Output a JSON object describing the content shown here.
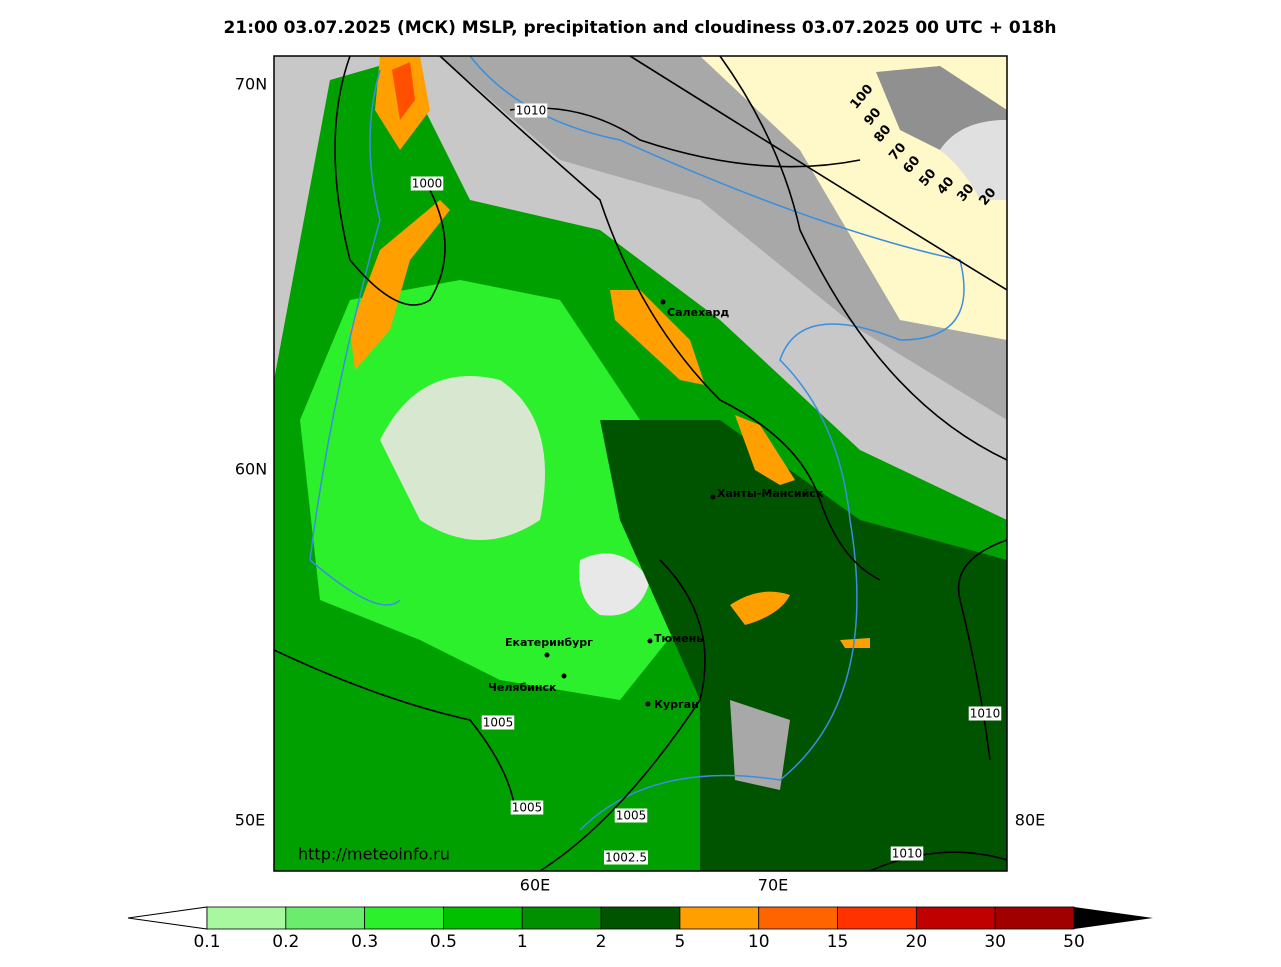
{
  "title": "21:00 03.07.2025 (МСК) MSLP, precipitation and cloudiness 03.07.2025 00 UTC + 018h",
  "axis_labels": [
    "70N",
    "60N",
    "50E",
    "80E",
    "60E",
    "70E"
  ],
  "cities": [
    "Салехард",
    "Ханты-Мансийск",
    "Екатеринбург",
    "Тюмень",
    "Челябинск",
    "Курган"
  ],
  "isobar_labels": [
    1010,
    1000,
    1005,
    1005,
    1005,
    1002.5,
    1010,
    1010
  ],
  "cloud_scale": [
    100,
    90,
    80,
    70,
    60,
    50,
    40,
    30,
    20
  ],
  "colorbar": {
    "ticks": [
      0.1,
      0.2,
      0.3,
      0.5,
      1,
      2,
      5,
      10,
      15,
      20,
      30,
      50
    ],
    "colors": [
      "#a8f8a0",
      "#6cec6c",
      "#2cf02c",
      "#00c000",
      "#009000",
      "#005400",
      "#ffa000",
      "#ff6400",
      "#ff3200",
      "#c00000",
      "#a00000"
    ]
  },
  "url": "http://meteoinfo.ru"
}
